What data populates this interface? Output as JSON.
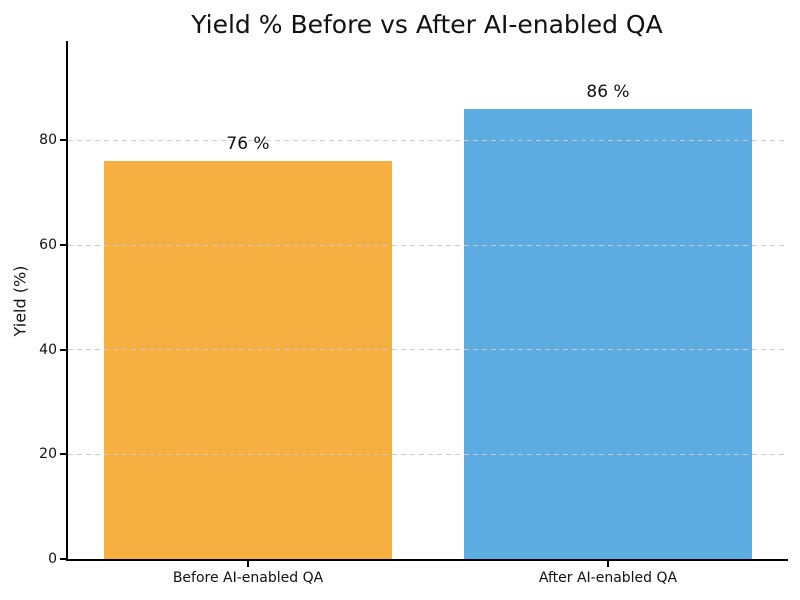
{
  "figure": {
    "background": "#ffffff"
  },
  "chart_data": {
    "type": "bar",
    "title": "Yield % Before vs After AI-enabled QA",
    "categories": [
      "Before AI-enabled QA",
      "After AI-enabled QA"
    ],
    "values": [
      76,
      86
    ],
    "value_labels": [
      "76 %",
      "86 %"
    ],
    "bar_colors": [
      "#f5b041",
      "#5dade2"
    ],
    "xlabel": "",
    "ylabel": "Yield (%)",
    "ylim": [
      0,
      99
    ],
    "yticks": [
      0,
      20,
      40,
      60,
      80
    ],
    "bar_width_fraction": 0.8,
    "grid": {
      "axis": "y",
      "style": "dashed",
      "color": "#cccccc"
    },
    "legend": null,
    "axis_color": "#000000",
    "text_color": "#111111"
  }
}
